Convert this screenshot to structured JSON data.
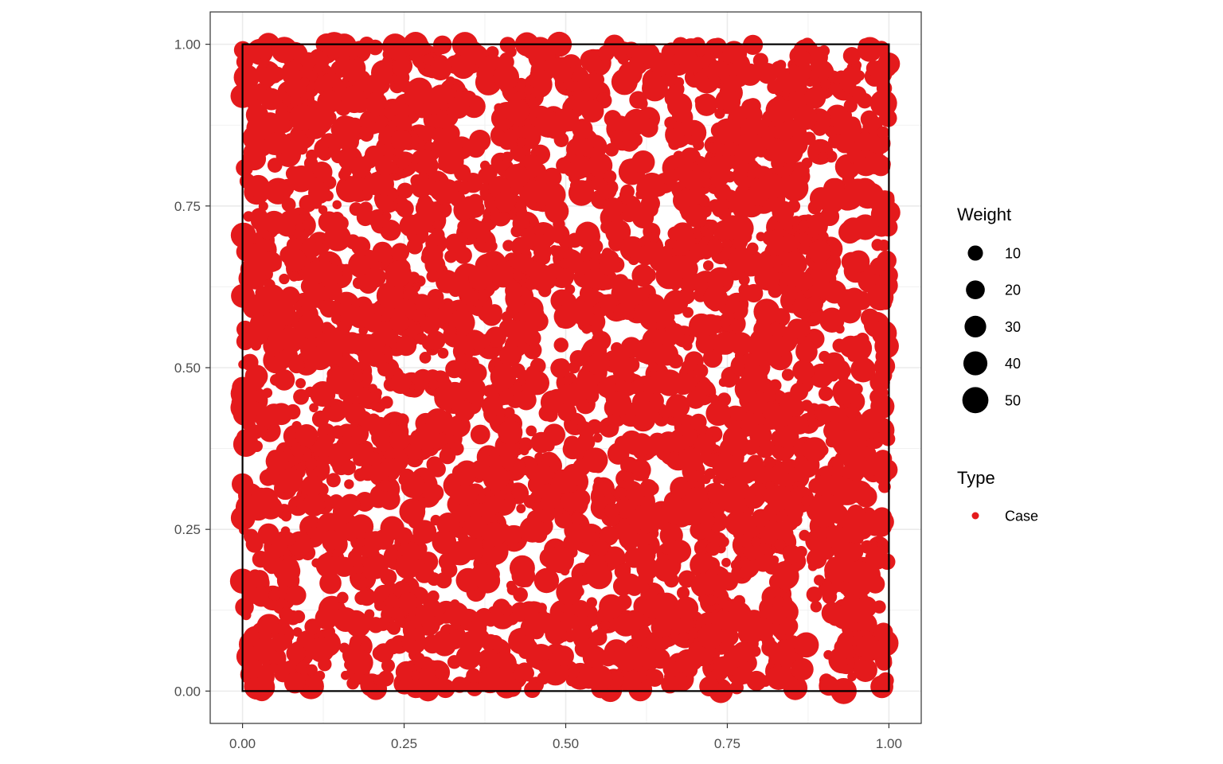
{
  "chart_data": {
    "type": "scatter",
    "title": "",
    "xlabel": "",
    "ylabel": "",
    "xlim": [
      -0.05,
      1.05
    ],
    "ylim": [
      -0.05,
      1.05
    ],
    "x_ticks": [
      0,
      0.25,
      0.5,
      0.75,
      1
    ],
    "y_ticks": [
      0,
      0.25,
      0.5,
      0.75,
      1
    ],
    "x_tick_labels": [
      "0.00",
      "0.25",
      "0.50",
      "0.75",
      "1.00"
    ],
    "y_tick_labels": [
      "0.00",
      "0.25",
      "0.50",
      "0.75",
      "1.00"
    ],
    "grid": true,
    "window": {
      "x": [
        0,
        1
      ],
      "y": [
        0,
        1
      ]
    },
    "point_color": "#E41A1C",
    "approx_point_count": 3000,
    "weight_range": [
      1,
      55
    ],
    "legend_placement": "right",
    "legends": {
      "size": {
        "title": "Weight",
        "entries": [
          {
            "label": "10",
            "value": 10
          },
          {
            "label": "20",
            "value": 20
          },
          {
            "label": "30",
            "value": 30
          },
          {
            "label": "40",
            "value": 40
          },
          {
            "label": "50",
            "value": 50
          }
        ]
      },
      "type": {
        "title": "Type",
        "entries": [
          {
            "label": "Case",
            "color": "#E41A1C"
          }
        ]
      }
    },
    "series": [
      {
        "name": "Case",
        "points": [
          {
            "x": 0.0,
            "y": 0.92,
            "w": 40
          },
          {
            "x": 0.0,
            "y": 0.17,
            "w": 45
          },
          {
            "x": 0.04,
            "y": 1.0,
            "w": 35
          },
          {
            "x": 0.13,
            "y": 1.0,
            "w": 30
          },
          {
            "x": 0.44,
            "y": 1.0,
            "w": 40
          },
          {
            "x": 0.49,
            "y": 1.0,
            "w": 45
          },
          {
            "x": 0.03,
            "y": 0.0,
            "w": 25
          },
          {
            "x": 0.74,
            "y": 0.0,
            "w": 40
          },
          {
            "x": 0.93,
            "y": 0.0,
            "w": 50
          },
          {
            "x": 0.0,
            "y": 0.32,
            "w": 30
          },
          {
            "x": 1.0,
            "y": 0.74,
            "w": 35
          },
          {
            "x": 0.24,
            "y": 0.63,
            "w": 40
          },
          {
            "x": 0.2,
            "y": 0.88,
            "w": 45
          },
          {
            "x": 0.53,
            "y": 0.85,
            "w": 50
          },
          {
            "x": 0.75,
            "y": 0.36,
            "w": 50
          },
          {
            "x": 0.99,
            "y": 0.44,
            "w": 40
          },
          {
            "x": 0.86,
            "y": 0.33,
            "w": 30
          },
          {
            "x": 0.03,
            "y": 0.09,
            "w": 30
          }
        ]
      }
    ]
  }
}
